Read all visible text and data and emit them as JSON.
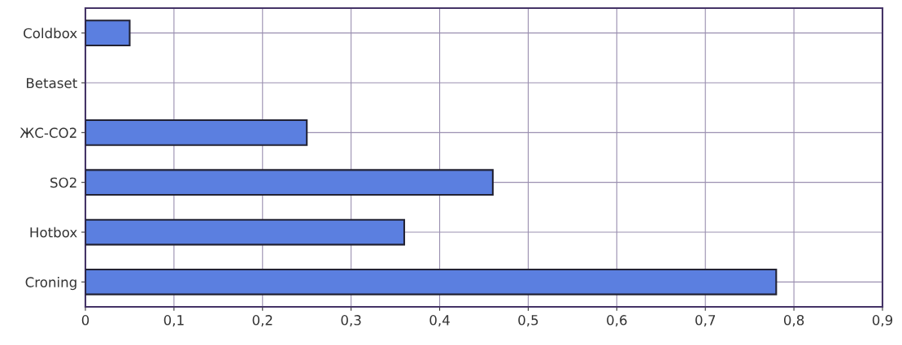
{
  "chart_data": {
    "type": "bar",
    "orientation": "horizontal",
    "categories": [
      "Coldbox",
      "Betaset",
      "ЖС-CO2",
      "SO2",
      "Hotbox",
      "Croning"
    ],
    "values": [
      0.05,
      null,
      0.25,
      0.46,
      0.36,
      0.78
    ],
    "color": "#5b7fe0",
    "xlim": [
      0,
      0.9
    ],
    "xticks": [
      0,
      {
        "value": 0.1,
        "label": "0,1"
      },
      {
        "value": 0.2,
        "label": "0,2"
      },
      {
        "value": 0.3,
        "label": "0,3"
      },
      {
        "value": 0.4,
        "label": "0,4"
      },
      {
        "value": 0.5,
        "label": "0,5"
      },
      {
        "value": 0.6,
        "label": "0,6"
      },
      {
        "value": 0.7,
        "label": "0,7"
      },
      {
        "value": 0.8,
        "label": "0,8"
      },
      {
        "value": 0.9,
        "label": "0,9"
      }
    ],
    "grid": true
  }
}
